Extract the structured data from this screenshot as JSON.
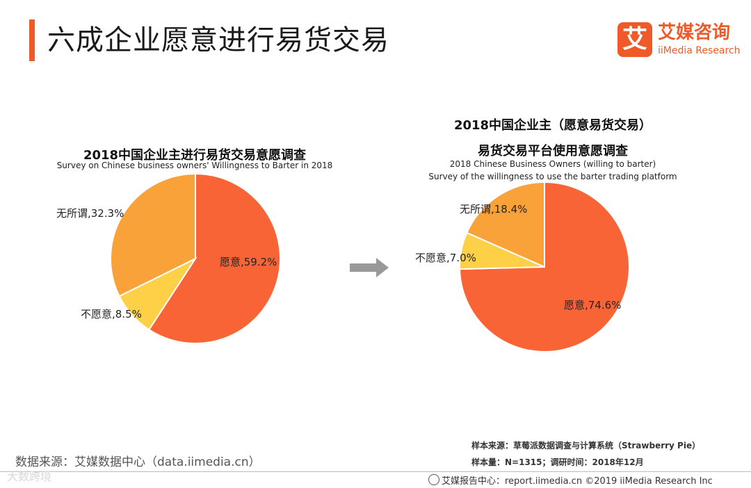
{
  "page": {
    "title": "六成企业愿意进行易货交易"
  },
  "logo": {
    "mark": "艾",
    "cn": "艾媒咨询",
    "en": "iiMedia Research"
  },
  "colors": {
    "accent": "#f05a28",
    "willing": "#f96437",
    "unwilling": "#fdd048",
    "indifferent": "#f9a23a",
    "arrow": "#999999"
  },
  "chart_data": [
    {
      "type": "pie",
      "title": "2018中国企业主进行易货交易意愿调查",
      "subtitle": "Survey on Chinese business owners' Willingness to Barter  in 2018",
      "slices": [
        {
          "name": "愿意",
          "value": 59.2,
          "label": "愿意,59.2%"
        },
        {
          "name": "不愿意",
          "value": 8.5,
          "label": "不愿意,8.5%"
        },
        {
          "name": "无所谓",
          "value": 32.3,
          "label": "无所谓,32.3%"
        }
      ]
    },
    {
      "type": "pie",
      "title_line1": "2018中国企业主（愿意易货交易）",
      "title_line2": "易货交易平台使用意愿调查",
      "subtitle_line1": "2018 Chinese Business Owners (willing to barter)",
      "subtitle_line2": "Survey of the willingness to use the barter trading platform",
      "slices": [
        {
          "name": "愿意",
          "value": 74.6,
          "label": "愿意,74.6%"
        },
        {
          "name": "不愿意",
          "value": 7.0,
          "label": "不愿意,7.0%"
        },
        {
          "name": "无所谓",
          "value": 18.4,
          "label": "无所谓,18.4%"
        }
      ]
    }
  ],
  "footer": {
    "data_source": "数据来源：艾媒数据中心（data.iimedia.cn）",
    "sample_source": "样本来源：草莓派数据调查与计算系统（Strawberry  Pie）",
    "sample_size": "样本量：N=1315；调研时间：2018年12月",
    "report_center": "艾媒报告中心：report.iimedia.cn  ©2019  iiMedia Research  Inc",
    "watermark": "大数跨境"
  }
}
